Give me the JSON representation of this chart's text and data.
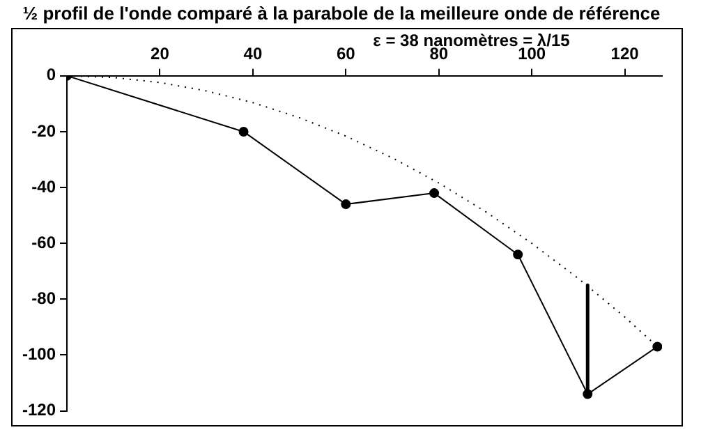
{
  "chart_data": {
    "type": "line",
    "title": "½ profil de l'onde comparé à la parabole de la meilleure onde de référence",
    "annotations": [
      "ε = 38 nanomètres = λ/15"
    ],
    "xlim": [
      0,
      128
    ],
    "xticks": [
      20,
      40,
      60,
      80,
      100,
      120
    ],
    "ylim": [
      -120,
      0
    ],
    "yticks": [
      0,
      -20,
      -40,
      -60,
      -80,
      -100,
      -120
    ],
    "grid": false,
    "legend": false,
    "series": [
      {
        "color": "#000000",
        "x": [
          0,
          38,
          60,
          79,
          97,
          112,
          127
        ],
        "values": [
          0,
          -20,
          -46,
          -42,
          -64,
          -114,
          -97
        ],
        "marker": "circle",
        "line_style": "solid"
      },
      {
        "color": "#000000",
        "x": [
          0,
          10,
          20,
          30,
          40,
          50,
          60,
          70,
          80,
          90,
          100,
          110,
          120,
          127
        ],
        "values": [
          0,
          -0.6,
          -2.4,
          -5.4,
          -9.6,
          -15,
          -21.6,
          -29.4,
          -38.4,
          -48.6,
          -60,
          -72.6,
          -86.4,
          -97
        ],
        "marker": "none",
        "line_style": "dotted"
      },
      {
        "color": "#000000",
        "x": [
          112,
          112
        ],
        "values": [
          -75,
          -114
        ],
        "marker": "none",
        "line_style": "solid"
      }
    ]
  }
}
